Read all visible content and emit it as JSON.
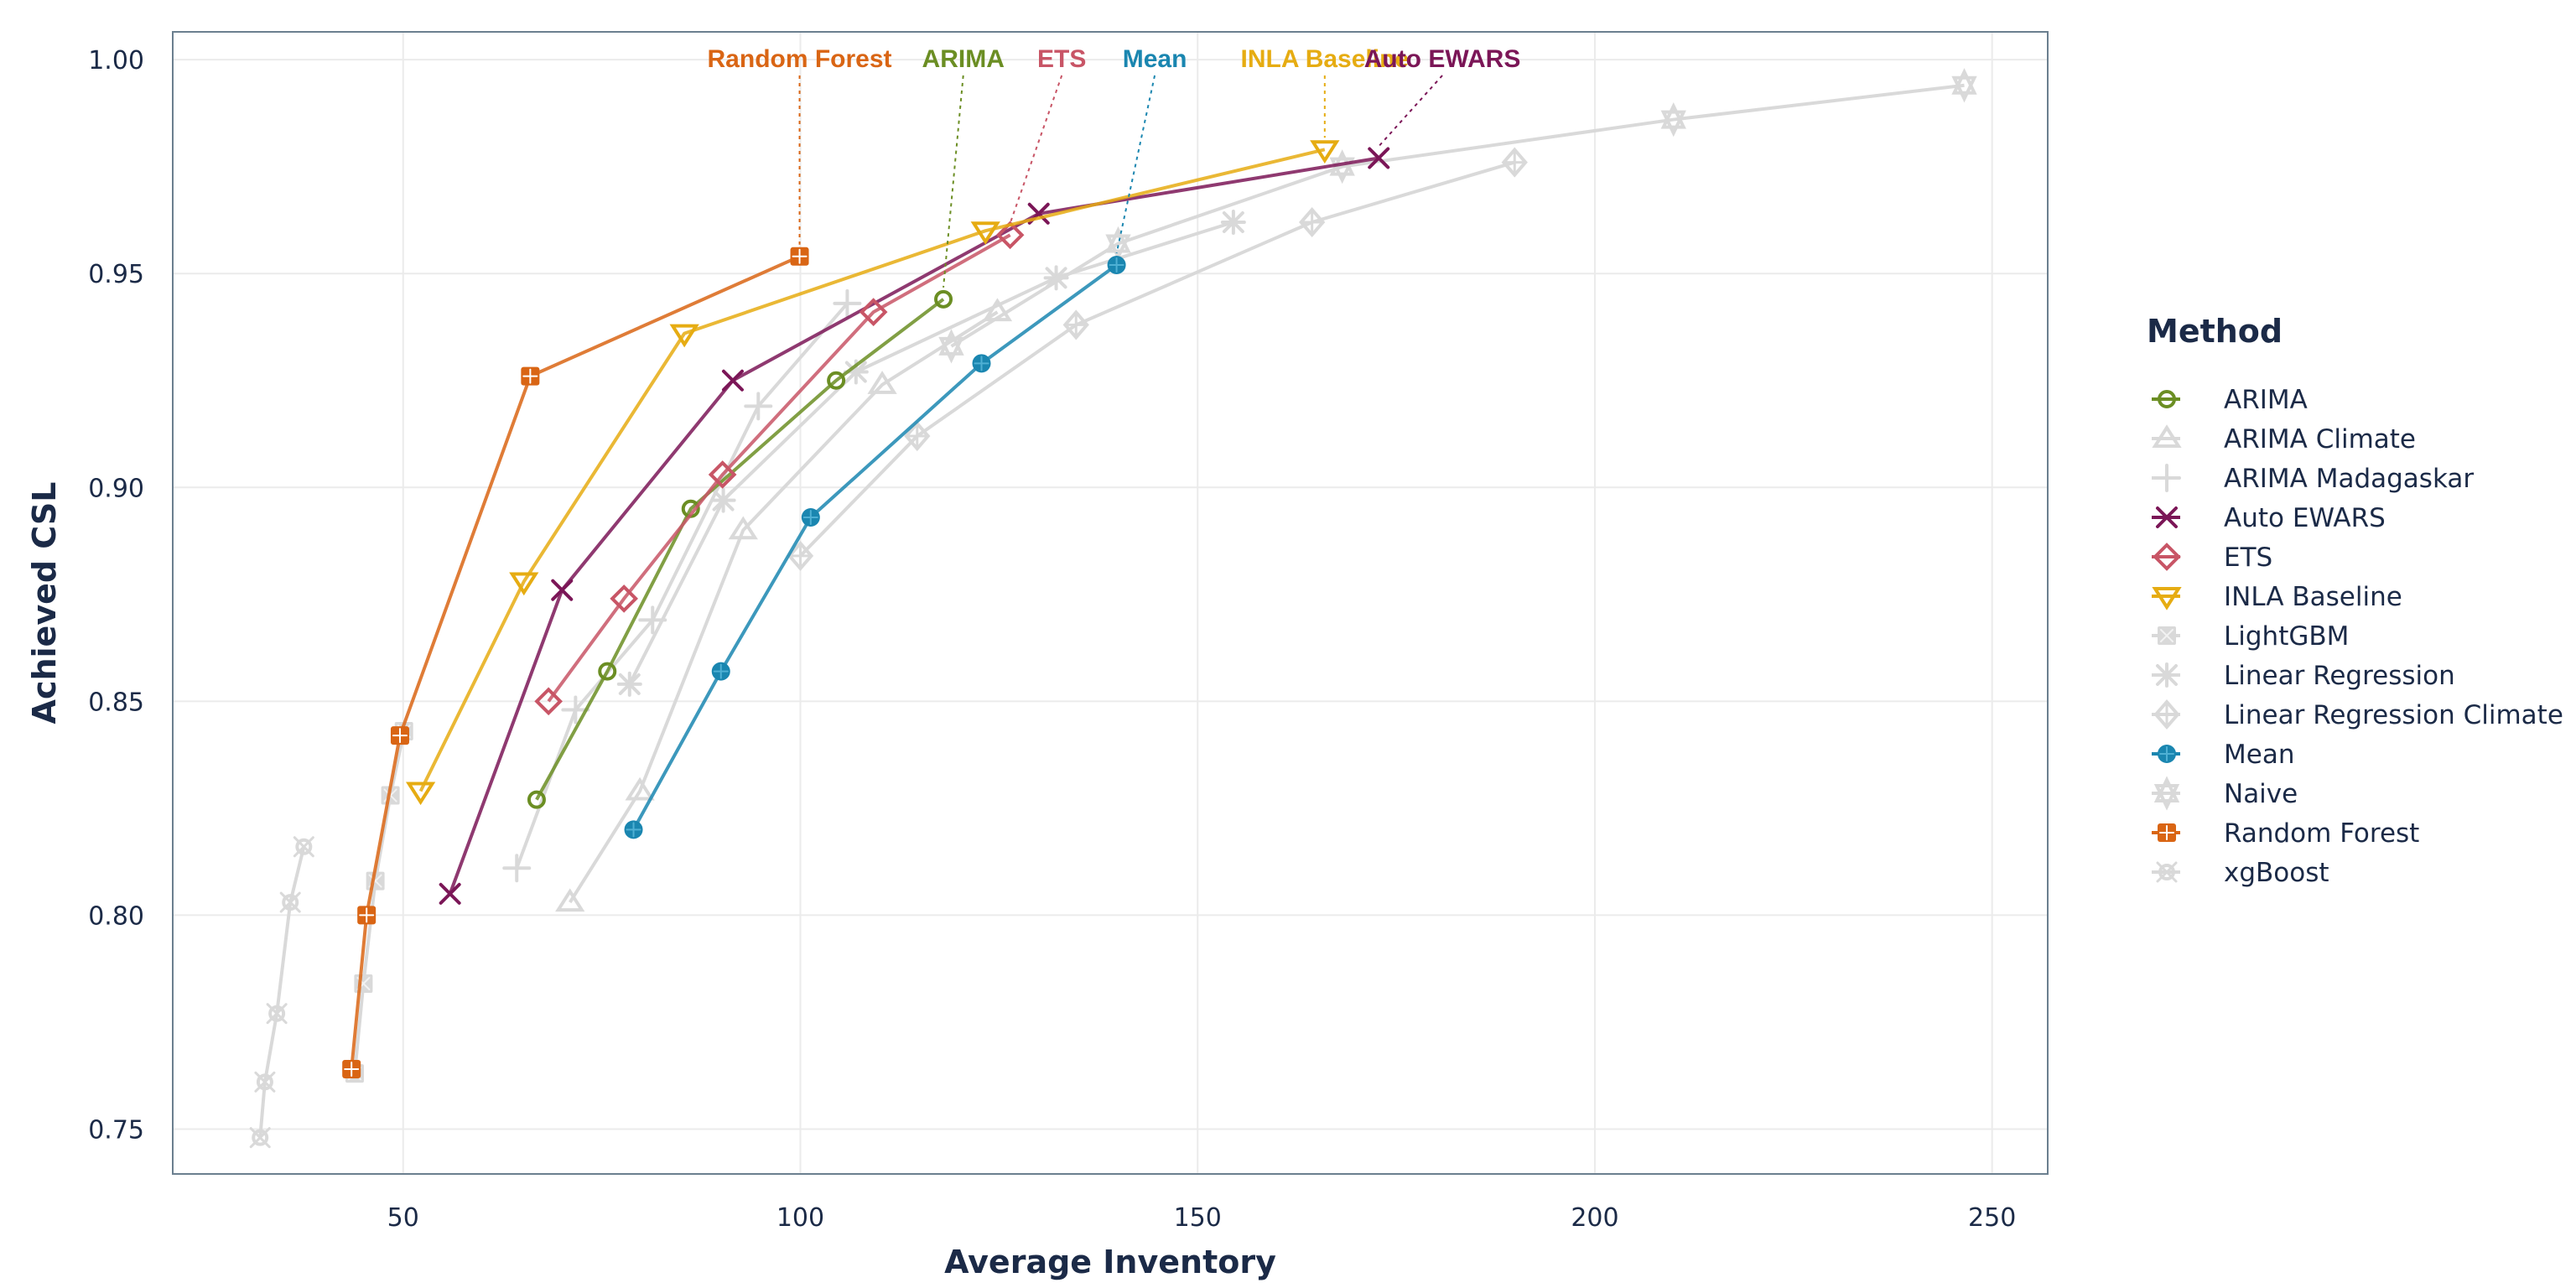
{
  "chart_data": {
    "type": "line",
    "title": "",
    "xlabel": "Average Inventory",
    "ylabel": "Achieved CSL",
    "xlim": [
      21,
      257
    ],
    "ylim": [
      0.7395,
      1.0065
    ],
    "xticks": [
      50,
      100,
      150,
      200,
      250
    ],
    "xtick_labels": [
      "50",
      "100",
      "150",
      "200",
      "250"
    ],
    "yticks": [
      0.75,
      0.8,
      0.85,
      0.9,
      0.95,
      1.0
    ],
    "ytick_labels": [
      "0.75",
      "0.80",
      "0.85",
      "0.90",
      "0.95",
      "1.00"
    ],
    "grid": true,
    "legend": {
      "title": "Method",
      "placement": "right"
    },
    "series": [
      {
        "name": "ARIMA",
        "color": "#6b8e23",
        "marker": "circle",
        "highlighted": true,
        "x": [
          66.8,
          75.7,
          86.2,
          104.5,
          118.0
        ],
        "y": [
          0.827,
          0.857,
          0.895,
          0.925,
          0.944
        ]
      },
      {
        "name": "ARIMA Climate",
        "color": "#d9d9d9",
        "marker": "triangle-up",
        "highlighted": false,
        "x": [
          71.0,
          79.8,
          92.8,
          110.3,
          124.8
        ],
        "y": [
          0.803,
          0.829,
          0.89,
          0.924,
          0.941
        ]
      },
      {
        "name": "ARIMA Madagaskar",
        "color": "#d9d9d9",
        "marker": "plus",
        "highlighted": false,
        "x": [
          64.3,
          71.7,
          81.4,
          94.7,
          105.9
        ],
        "y": [
          0.811,
          0.848,
          0.869,
          0.919,
          0.943
        ]
      },
      {
        "name": "Auto EWARS",
        "color": "#7b1657",
        "marker": "x",
        "highlighted": true,
        "x": [
          55.9,
          70.0,
          91.5,
          130.0,
          172.8
        ],
        "y": [
          0.805,
          0.876,
          0.925,
          0.964,
          0.977
        ]
      },
      {
        "name": "ETS",
        "color": "#c85566",
        "marker": "diamond",
        "highlighted": true,
        "x": [
          68.3,
          77.8,
          90.2,
          109.2,
          126.4
        ],
        "y": [
          0.85,
          0.874,
          0.903,
          0.941,
          0.959
        ]
      },
      {
        "name": "INLA Baseline",
        "color": "#e6ac12",
        "marker": "triangle-down",
        "highlighted": true,
        "x": [
          52.2,
          65.2,
          85.4,
          123.3,
          166.0
        ],
        "y": [
          0.829,
          0.878,
          0.936,
          0.96,
          0.979
        ]
      },
      {
        "name": "LightGBM",
        "color": "#d9d9d9",
        "marker": "square-x",
        "highlighted": false,
        "x": [
          43.9,
          45.0,
          46.5,
          48.4,
          50.1
        ],
        "y": [
          0.763,
          0.784,
          0.808,
          0.828,
          0.843
        ]
      },
      {
        "name": "Linear Regression",
        "color": "#d9d9d9",
        "marker": "asterisk",
        "highlighted": false,
        "x": [
          78.5,
          90.3,
          107.0,
          132.2,
          154.5
        ],
        "y": [
          0.854,
          0.897,
          0.927,
          0.949,
          0.962
        ]
      },
      {
        "name": "Linear Regression Climate",
        "color": "#d9d9d9",
        "marker": "diamond-plus",
        "highlighted": false,
        "x": [
          100.0,
          114.7,
          134.7,
          164.4,
          189.9
        ],
        "y": [
          0.884,
          0.912,
          0.938,
          0.962,
          0.976
        ]
      },
      {
        "name": "Mean",
        "color": "#1a86b0",
        "marker": "circle-plus",
        "highlighted": true,
        "x": [
          79.0,
          90.0,
          101.3,
          122.8,
          139.8
        ],
        "y": [
          0.82,
          0.857,
          0.893,
          0.929,
          0.952
        ]
      },
      {
        "name": "Naive",
        "color": "#d9d9d9",
        "marker": "star-of-david",
        "highlighted": false,
        "x": [
          119.0,
          140.0,
          168.2,
          209.9,
          246.5
        ],
        "y": [
          0.933,
          0.957,
          0.975,
          0.986,
          0.994
        ]
      },
      {
        "name": "Random Forest",
        "color": "#d96514",
        "marker": "square-plus",
        "highlighted": true,
        "x": [
          43.5,
          45.4,
          49.6,
          66.0,
          99.9
        ],
        "y": [
          0.764,
          0.8,
          0.842,
          0.926,
          0.954
        ]
      },
      {
        "name": "xgBoost",
        "color": "#d9d9d9",
        "marker": "circle-x",
        "highlighted": false,
        "x": [
          32.0,
          32.6,
          34.1,
          35.8,
          37.5
        ],
        "y": [
          0.748,
          0.761,
          0.777,
          0.803,
          0.816
        ]
      }
    ],
    "annotations": [
      {
        "text": "Random Forest",
        "series": "Random Forest",
        "label_x": 99.9,
        "color": "#d96514"
      },
      {
        "text": "ARIMA",
        "series": "ARIMA",
        "label_x": 120.5,
        "color": "#6b8e23"
      },
      {
        "text": "ETS",
        "series": "ETS",
        "label_x": 132.9,
        "color": "#c85566"
      },
      {
        "text": "Mean",
        "series": "Mean",
        "label_x": 144.6,
        "color": "#1a86b0"
      },
      {
        "text": "INLA Baseline",
        "series": "INLA Baseline",
        "label_x": 166.0,
        "color": "#e6ac12"
      },
      {
        "text": "Auto EWARS",
        "series": "Auto EWARS",
        "label_x": 180.8,
        "color": "#7b1657"
      }
    ]
  }
}
